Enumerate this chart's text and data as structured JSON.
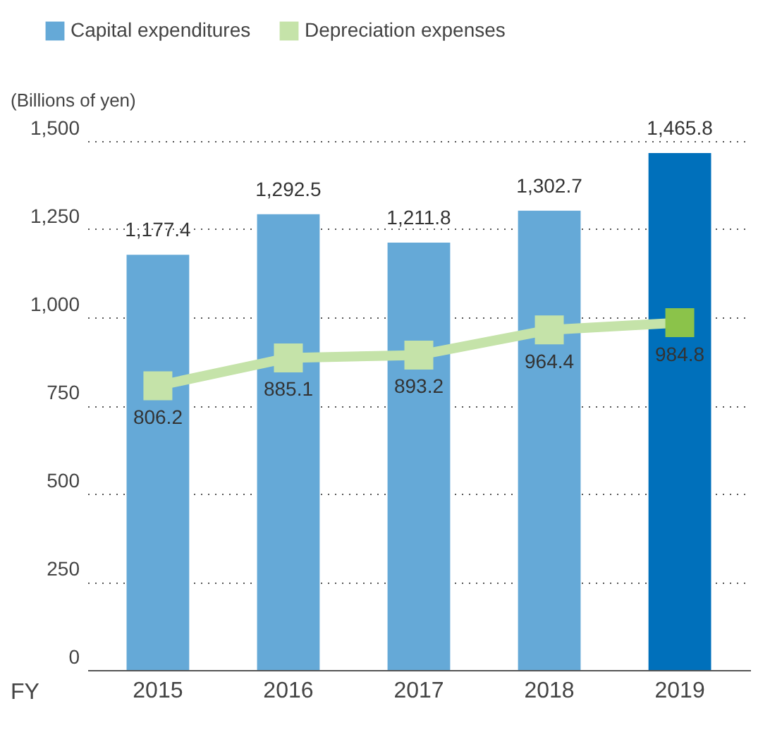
{
  "chart_data": {
    "type": "bar",
    "xlabel": "FY",
    "ylabel": "(Billions of yen)",
    "categories": [
      "2015",
      "2016",
      "2017",
      "2018",
      "2019"
    ],
    "series": [
      {
        "name": "Capital expenditures",
        "color": "#65a9d7",
        "colors": [
          "#65a9d7",
          "#65a9d7",
          "#65a9d7",
          "#65a9d7",
          "#0070bb"
        ],
        "values": [
          1177.4,
          1292.5,
          1211.8,
          1302.7,
          1465.8
        ],
        "value_labels": [
          "1,177.4",
          "1,292.5",
          "1,211.8",
          "1,302.7",
          "1,465.8"
        ]
      },
      {
        "name": "Depreciation expenses",
        "type": "line",
        "color": "#c5e3a9",
        "colors": [
          "#c5e3a9",
          "#c5e3a9",
          "#c5e3a9",
          "#c5e3a9",
          "#8bc34a"
        ],
        "marker": "square",
        "values": [
          806.2,
          885.1,
          893.2,
          964.4,
          984.8
        ],
        "value_labels": [
          "806.2",
          "885.1",
          "893.2",
          "964.4",
          "984.8"
        ]
      }
    ],
    "ylim": [
      0,
      1500
    ],
    "yticks": [
      0,
      250,
      500,
      750,
      {
        "value": 1000,
        "label": "1,000"
      },
      {
        "value": 1250,
        "label": "1,250"
      },
      {
        "value": 1500,
        "label": "1,500"
      }
    ],
    "grid": "y",
    "legend": "top left"
  }
}
